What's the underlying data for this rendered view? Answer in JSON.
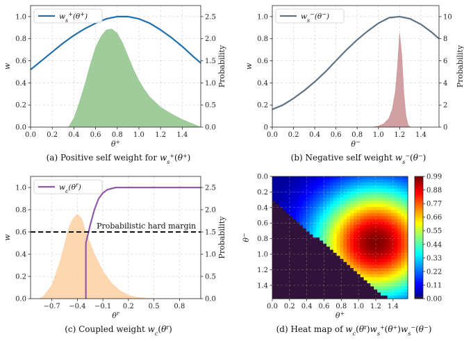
{
  "chart_data": [
    {
      "id": "a",
      "type": "line+area",
      "caption": "(a) Positive self weight for w_s^+(θ^+)",
      "xlabel": "θ+",
      "ylabel": "w",
      "ylabel_right": "Probability",
      "xlim": [
        0.0,
        1.5708
      ],
      "ylim": [
        0.0,
        1.1
      ],
      "ylim_right": [
        0.0,
        2.75
      ],
      "x_ticks": [
        "0.0",
        "0.2",
        "0.4",
        "0.6",
        "0.8",
        "1.0",
        "1.2",
        "1.4"
      ],
      "y_ticks": [
        "0.0",
        "0.2",
        "0.4",
        "0.6",
        "0.8",
        "1.0"
      ],
      "y_right_ticks": [
        "0.0",
        "0.5",
        "1.0",
        "1.5",
        "2.0",
        "2.5"
      ],
      "legend": {
        "label": "w_s^+(θ^+)",
        "position": "top-left"
      },
      "grid": true,
      "series": [
        {
          "name": "w_s^+(θ^+)",
          "kind": "line",
          "color": "#1f6fad",
          "x": [
            0.0,
            0.1,
            0.2,
            0.3,
            0.4,
            0.5,
            0.6,
            0.7,
            0.8,
            0.9,
            1.0,
            1.1,
            1.2,
            1.3,
            1.4,
            1.5,
            1.5708
          ],
          "y": [
            0.52,
            0.6,
            0.68,
            0.76,
            0.83,
            0.89,
            0.94,
            0.98,
            1.0,
            1.0,
            0.98,
            0.94,
            0.88,
            0.81,
            0.73,
            0.64,
            0.58
          ]
        },
        {
          "kind": "area",
          "axis": "right",
          "color": "#8fc38a",
          "x": [
            0.35,
            0.4,
            0.45,
            0.5,
            0.55,
            0.6,
            0.65,
            0.7,
            0.75,
            0.8,
            0.85,
            0.9,
            0.95,
            1.0,
            1.05,
            1.1,
            1.2,
            1.3,
            1.4,
            1.5,
            1.5708
          ],
          "y": [
            0.0,
            0.2,
            0.55,
            0.95,
            1.4,
            1.8,
            2.05,
            2.2,
            2.22,
            2.12,
            1.9,
            1.6,
            1.3,
            1.05,
            0.85,
            0.68,
            0.45,
            0.3,
            0.17,
            0.07,
            0.0
          ]
        }
      ]
    },
    {
      "id": "b",
      "type": "line+area",
      "caption": "(b) Negative self weight w_s^-(θ^-)",
      "xlabel": "θ-",
      "ylabel": "w",
      "ylabel_right": "Probability",
      "xlim": [
        0.0,
        1.5708
      ],
      "ylim": [
        0.0,
        1.1
      ],
      "ylim_right": [
        0.0,
        11.0
      ],
      "x_ticks": [
        "0.0",
        "0.2",
        "0.4",
        "0.6",
        "0.8",
        "1.0",
        "1.2",
        "1.4"
      ],
      "y_ticks": [
        "0",
        "0.2",
        "0.4",
        "0.6",
        "0.8",
        "1.0"
      ],
      "y_right_ticks": [
        "0",
        "2",
        "4",
        "6",
        "8",
        "10"
      ],
      "legend": {
        "label": "w_s^-(θ^-)",
        "position": "top-left"
      },
      "grid": true,
      "series": [
        {
          "name": "w_s^-(θ^-)",
          "kind": "line",
          "color": "#5f7282",
          "x": [
            0.0,
            0.1,
            0.2,
            0.3,
            0.4,
            0.5,
            0.6,
            0.7,
            0.8,
            0.9,
            1.0,
            1.1,
            1.2,
            1.3,
            1.4,
            1.5,
            1.5708
          ],
          "y": [
            0.16,
            0.2,
            0.26,
            0.33,
            0.41,
            0.5,
            0.6,
            0.7,
            0.79,
            0.87,
            0.94,
            0.99,
            1.0,
            0.98,
            0.93,
            0.86,
            0.8
          ]
        },
        {
          "kind": "area",
          "axis": "right",
          "color": "#c98f93",
          "x": [
            0.95,
            1.0,
            1.05,
            1.1,
            1.13,
            1.16,
            1.18,
            1.2,
            1.22,
            1.24,
            1.26,
            1.28,
            1.3
          ],
          "y": [
            0.0,
            0.1,
            0.3,
            0.8,
            1.6,
            3.2,
            5.5,
            8.5,
            6.5,
            3.0,
            1.0,
            0.2,
            0.0
          ]
        }
      ]
    },
    {
      "id": "c",
      "type": "line+area",
      "caption": "(c) Coupled weight w_c(θ^r)",
      "xlabel": "θr",
      "ylabel": "w",
      "ylabel_right": "Probability",
      "xlim": [
        -0.95,
        1.05
      ],
      "ylim": [
        0.0,
        1.1
      ],
      "ylim_right": [
        0.0,
        2.75
      ],
      "x_ticks": [
        "−0.7",
        "−0.4",
        "−0.1",
        "0.2",
        "0.5",
        "0.8"
      ],
      "x_tick_values": [
        -0.7,
        -0.4,
        -0.1,
        0.2,
        0.5,
        0.8
      ],
      "y_ticks": [
        "0.0",
        "0.2",
        "0.4",
        "0.6",
        "0.8",
        "1.0"
      ],
      "y_right_ticks": [
        "0.0",
        "0.5",
        "1.0",
        "1.5",
        "2.0",
        "2.5"
      ],
      "legend": {
        "label": "w_c(θ^r)",
        "position": "top-left"
      },
      "annotation": {
        "text": "Probabilistic hard margin",
        "y": 0.6
      },
      "grid": true,
      "series": [
        {
          "name": "w_c(θ^r)",
          "kind": "line",
          "color": "#8e5aa8",
          "x": [
            -0.3,
            -0.3,
            -0.25,
            -0.2,
            -0.15,
            -0.1,
            -0.05,
            0.0,
            0.05,
            0.1,
            0.2,
            0.3,
            0.5,
            0.8,
            1.05
          ],
          "y": [
            0.0,
            0.5,
            0.66,
            0.8,
            0.9,
            0.95,
            0.98,
            0.99,
            1.0,
            1.0,
            1.0,
            1.0,
            1.0,
            1.0,
            1.0
          ]
        },
        {
          "kind": "area",
          "axis": "right",
          "color": "#fdd0a2",
          "x": [
            -0.85,
            -0.8,
            -0.7,
            -0.6,
            -0.5,
            -0.45,
            -0.4,
            -0.35,
            -0.3,
            -0.2,
            -0.1,
            0.0,
            0.1,
            0.2,
            0.3,
            0.4,
            0.5
          ],
          "y": [
            0.0,
            0.05,
            0.3,
            0.85,
            1.6,
            1.8,
            1.9,
            1.8,
            1.5,
            1.0,
            0.62,
            0.35,
            0.18,
            0.08,
            0.03,
            0.01,
            0.0
          ]
        },
        {
          "kind": "hline",
          "style": "dashed",
          "color": "#111111",
          "y": 0.6
        }
      ]
    },
    {
      "id": "d",
      "type": "heatmap",
      "caption": "(d) Heat map of w_c(θ^r)w_s^+(θ^+)w_s^-(θ^-)",
      "xlabel": "θ+",
      "ylabel": "θ-",
      "xlim": [
        0.0,
        1.5708
      ],
      "ylim": [
        0.0,
        1.5708
      ],
      "x_ticks": [
        "0.0",
        "0.2",
        "0.4",
        "0.6",
        "0.8",
        "1.0",
        "1.2",
        "1.4"
      ],
      "y_ticks": [
        "0.0",
        "0.2",
        "0.4",
        "0.6",
        "0.8",
        "1.0",
        "1.2",
        "1.4"
      ],
      "colorbar_ticks": [
        "0.99",
        "0.88",
        "0.77",
        "0.66",
        "0.55",
        "0.44",
        "0.33",
        "0.22",
        "0.11",
        "0.00"
      ],
      "value_range": [
        0.0,
        0.99
      ],
      "peak": {
        "theta_plus": 1.2,
        "theta_minus": 0.85,
        "value": 0.99
      },
      "cutoff": "zero where θ- > 0.3 + 0.85·θ+ roughly (θr < threshold)",
      "colormap": "jet"
    }
  ]
}
